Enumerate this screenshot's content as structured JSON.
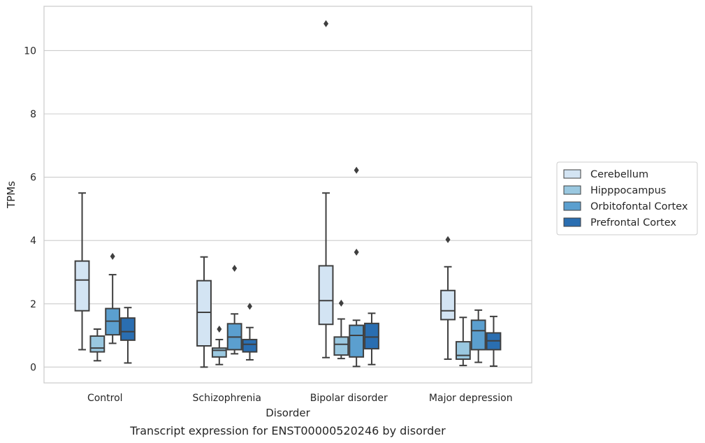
{
  "chart_data": {
    "type": "box",
    "title": "",
    "caption": "Transcript expression for ENST00000520246 by disorder",
    "xlabel": "Disorder",
    "ylabel": "TPMs",
    "ylim": [
      -0.5,
      11.4
    ],
    "yticks": [
      "0",
      "2",
      "4",
      "6",
      "8",
      "10"
    ],
    "grid": "horizontal",
    "legend_position": "right",
    "categories": [
      "Control",
      "Schizophrenia",
      "Bipolar disorder",
      "Major depression"
    ],
    "series": [
      {
        "name": "Cerebellum",
        "color": "#d3e4f3",
        "boxes": [
          {
            "whislo": 0.55,
            "q1": 1.78,
            "med": 2.75,
            "q3": 3.35,
            "whishi": 5.5,
            "fliers": []
          },
          {
            "whislo": 0.0,
            "q1": 0.67,
            "med": 1.73,
            "q3": 2.73,
            "whishi": 3.48,
            "fliers": []
          },
          {
            "whislo": 0.3,
            "q1": 1.35,
            "med": 2.1,
            "q3": 3.2,
            "whishi": 5.5,
            "fliers": [
              10.85
            ]
          },
          {
            "whislo": 0.25,
            "q1": 1.5,
            "med": 1.78,
            "q3": 2.42,
            "whishi": 3.17,
            "fliers": [
              4.03
            ]
          }
        ]
      },
      {
        "name": "Hipppocampus",
        "color": "#9ac8e0",
        "boxes": [
          {
            "whislo": 0.2,
            "q1": 0.48,
            "med": 0.6,
            "q3": 0.98,
            "whishi": 1.2,
            "fliers": []
          },
          {
            "whislo": 0.08,
            "q1": 0.32,
            "med": 0.53,
            "q3": 0.6,
            "whishi": 0.87,
            "fliers": [
              1.2
            ]
          },
          {
            "whislo": 0.27,
            "q1": 0.38,
            "med": 0.72,
            "q3": 0.95,
            "whishi": 1.52,
            "fliers": [
              2.02
            ]
          },
          {
            "whislo": 0.05,
            "q1": 0.25,
            "med": 0.37,
            "q3": 0.8,
            "whishi": 1.57,
            "fliers": []
          }
        ]
      },
      {
        "name": "Orbitofontal Cortex",
        "color": "#5b9fcf",
        "boxes": [
          {
            "whislo": 0.75,
            "q1": 1.02,
            "med": 1.45,
            "q3": 1.85,
            "whishi": 2.92,
            "fliers": [
              3.5
            ]
          },
          {
            "whislo": 0.42,
            "q1": 0.55,
            "med": 0.95,
            "q3": 1.37,
            "whishi": 1.68,
            "fliers": [
              3.12
            ]
          },
          {
            "whislo": 0.02,
            "q1": 0.32,
            "med": 1.0,
            "q3": 1.32,
            "whishi": 1.48,
            "fliers": [
              3.63,
              6.22
            ]
          },
          {
            "whislo": 0.15,
            "q1": 0.55,
            "med": 1.15,
            "q3": 1.48,
            "whishi": 1.8,
            "fliers": []
          }
        ]
      },
      {
        "name": "Prefrontal Cortex",
        "color": "#2a6eb1",
        "boxes": [
          {
            "whislo": 0.13,
            "q1": 0.85,
            "med": 1.12,
            "q3": 1.55,
            "whishi": 1.88,
            "fliers": []
          },
          {
            "whislo": 0.23,
            "q1": 0.48,
            "med": 0.72,
            "q3": 0.87,
            "whishi": 1.25,
            "fliers": [
              1.92
            ]
          },
          {
            "whislo": 0.08,
            "q1": 0.58,
            "med": 0.95,
            "q3": 1.38,
            "whishi": 1.7,
            "fliers": []
          },
          {
            "whislo": 0.03,
            "q1": 0.55,
            "med": 0.83,
            "q3": 1.08,
            "whishi": 1.6,
            "fliers": []
          }
        ]
      }
    ]
  }
}
